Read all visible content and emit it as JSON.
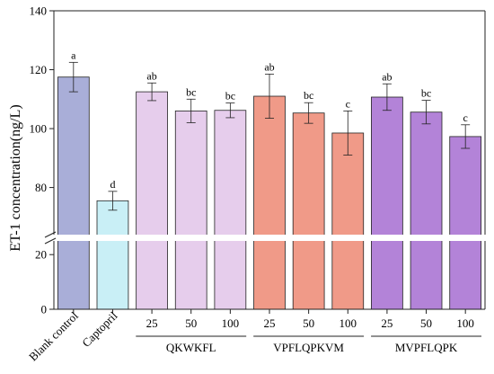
{
  "chart_data": {
    "type": "bar",
    "ylabel": "ET-1 concentration(ng/L)",
    "xlabel": "",
    "y_break": [
      25,
      64
    ],
    "ylim": [
      0,
      140
    ],
    "y_ticks": [
      0,
      20,
      80,
      100,
      120,
      140
    ],
    "categories": [
      "Blank control",
      "Captopril",
      "25",
      "50",
      "100",
      "25",
      "50",
      "100",
      "25",
      "50",
      "100"
    ],
    "values": [
      117.5,
      75.5,
      112.5,
      106.0,
      106.2,
      111.0,
      105.3,
      98.5,
      110.7,
      105.6,
      97.3
    ],
    "errors": [
      5.0,
      3.2,
      3.0,
      4.0,
      2.5,
      7.5,
      3.5,
      7.5,
      4.5,
      4.0,
      4.0
    ],
    "significance_letters": [
      "a",
      "d",
      "ab",
      "bc",
      "bc",
      "ab",
      "bc",
      "c",
      "ab",
      "bc",
      "c"
    ],
    "colors": [
      "#a9aed8",
      "#c9eff6",
      "#e6cdec",
      "#e6cdec",
      "#e6cdec",
      "#f09a88",
      "#f09a88",
      "#f09a88",
      "#b383d8",
      "#b383d8",
      "#b383d8"
    ],
    "groups": [
      {
        "label": "QKWKFL",
        "start": 2,
        "end": 4
      },
      {
        "label": "VPFLQPKVM",
        "start": 5,
        "end": 7
      },
      {
        "label": "MVPFLQPK",
        "start": 8,
        "end": 10
      }
    ],
    "rotated_labels": [
      true,
      true,
      false,
      false,
      false,
      false,
      false,
      false,
      false,
      false,
      false
    ]
  }
}
